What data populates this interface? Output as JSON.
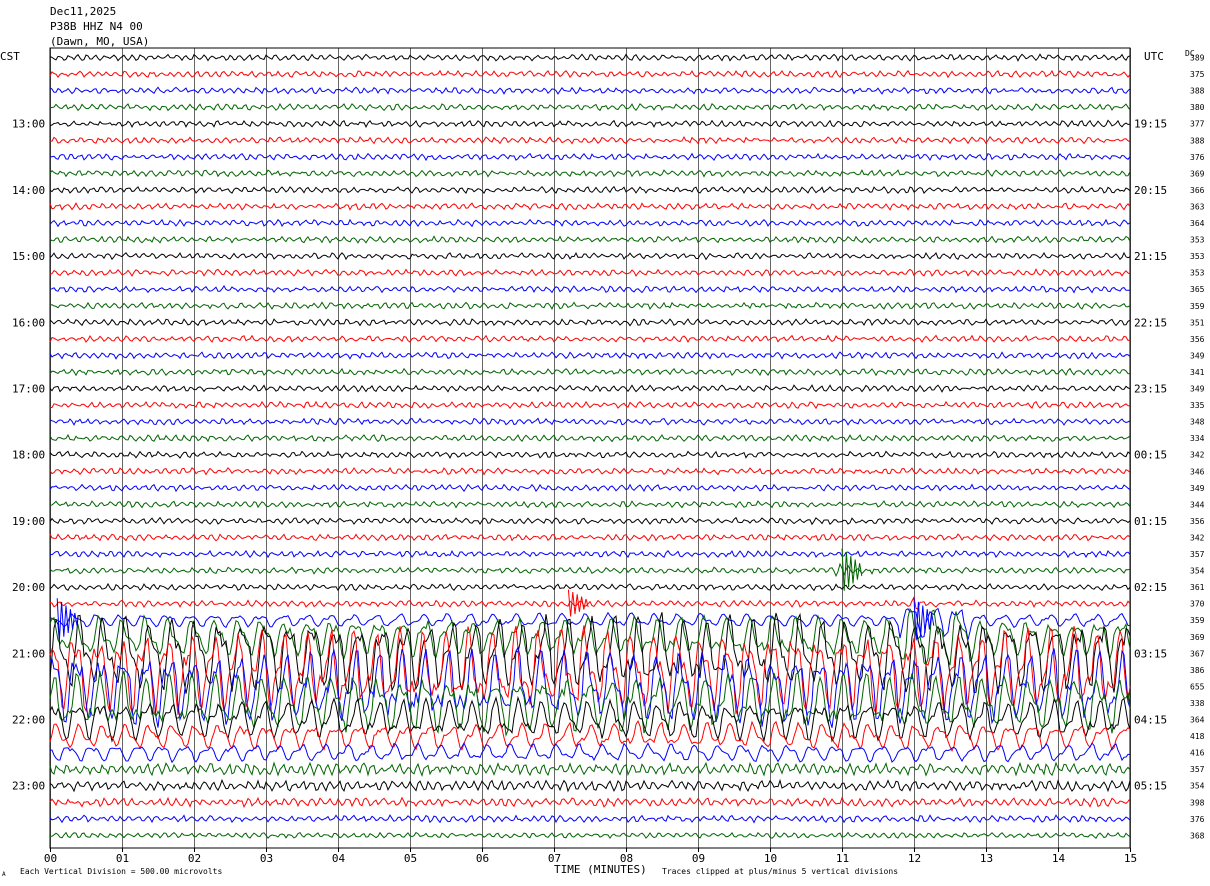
{
  "header": {
    "date": "Dec11,2025",
    "station": "P38B HHZ N4 00",
    "location": "(Dawn, MO, USA)"
  },
  "left_tz": "CST",
  "right_tz": "UTC",
  "dc_heading": "DC",
  "footer": {
    "scale_note": "Each Vertical Division =  500.00 microvolts",
    "xlabel": "TIME (MINUTES)",
    "clip_note": "Traces clipped at plus/minus 5 vertical divisions",
    "corner_mark": "A"
  },
  "colors": {
    "trace_cycle": [
      "#000000",
      "#ff0000",
      "#0000ff",
      "#006400"
    ],
    "grid": "#000000",
    "background": "#ffffff"
  },
  "chart_data": {
    "type": "seismogram helicorder",
    "x": {
      "min": 0,
      "max": 15,
      "ticks": [
        "00",
        "01",
        "02",
        "03",
        "04",
        "05",
        "06",
        "07",
        "08",
        "09",
        "10",
        "11",
        "12",
        "13",
        "14",
        "15"
      ]
    },
    "line_minutes": 15,
    "lines_per_hour": 4,
    "left_hour_labels": [
      "13:00",
      "14:00",
      "15:00",
      "16:00",
      "17:00",
      "18:00",
      "19:00",
      "20:00",
      "21:00",
      "22:00",
      "23:00"
    ],
    "right_hour_labels": [
      "19:15",
      "20:15",
      "21:15",
      "22:15",
      "23:15",
      "00:15",
      "01:15",
      "02:15",
      "03:15",
      "04:15",
      "05:15"
    ],
    "dc_offsets": [
      389,
      375,
      388,
      380,
      377,
      388,
      376,
      369,
      366,
      363,
      364,
      353,
      353,
      353,
      365,
      359,
      351,
      356,
      349,
      341,
      349,
      335,
      348,
      334,
      342,
      346,
      349,
      344,
      356,
      342,
      357,
      354,
      361,
      370,
      359,
      369,
      367,
      386,
      655,
      338,
      364,
      418,
      416,
      357,
      354,
      398,
      376,
      368
    ],
    "events": [
      {
        "line": 33,
        "minute": 7.2,
        "note": "spike"
      },
      {
        "line": 34,
        "minute": 0.1,
        "note": "teleseism onset"
      },
      {
        "line": 34,
        "minute": 12.0,
        "note": "local high-frequency burst"
      },
      {
        "line": 31,
        "minute": 11.0,
        "note": "small burst"
      }
    ]
  }
}
